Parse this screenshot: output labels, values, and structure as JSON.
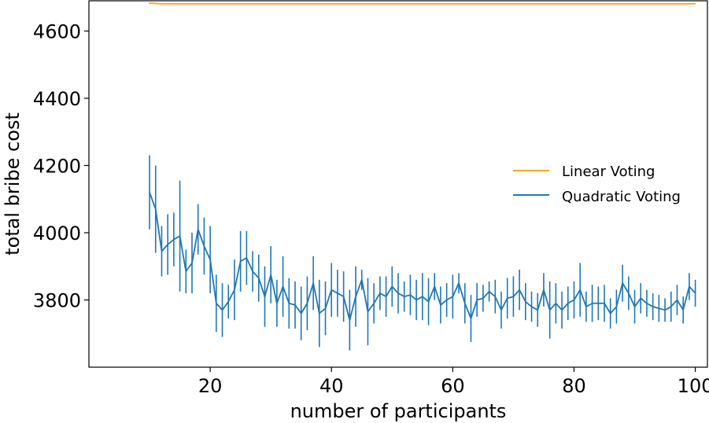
{
  "chart_data": {
    "type": "line",
    "xlabel": "number of participants",
    "ylabel": "total bribe cost",
    "xlim": [
      0,
      102
    ],
    "ylim": [
      3600,
      4690
    ],
    "xticks": [
      20,
      40,
      60,
      80,
      100
    ],
    "yticks": [
      3800,
      4000,
      4200,
      4400,
      4600
    ],
    "grid": false,
    "legend": "center-right",
    "colors": {
      "linear": "#f5a623",
      "quadratic": "#1f77b4"
    },
    "x": [
      10,
      11,
      12,
      13,
      14,
      15,
      16,
      17,
      18,
      19,
      20,
      21,
      22,
      23,
      24,
      25,
      26,
      27,
      28,
      29,
      30,
      31,
      32,
      33,
      34,
      35,
      36,
      37,
      38,
      39,
      40,
      41,
      42,
      43,
      44,
      45,
      46,
      47,
      48,
      49,
      50,
      51,
      52,
      53,
      54,
      55,
      56,
      57,
      58,
      59,
      60,
      61,
      62,
      63,
      64,
      65,
      66,
      67,
      68,
      69,
      70,
      71,
      72,
      73,
      74,
      75,
      76,
      77,
      78,
      79,
      80,
      81,
      82,
      83,
      84,
      85,
      86,
      87,
      88,
      89,
      90,
      91,
      92,
      93,
      94,
      95,
      96,
      97,
      98,
      99,
      100
    ],
    "series": [
      {
        "name": "Linear Voting",
        "values": [
          4683,
          4682,
          4681,
          4681,
          4681,
          4681,
          4681,
          4681,
          4681,
          4681,
          4681,
          4681,
          4681,
          4681,
          4681,
          4681,
          4681,
          4681,
          4681,
          4681,
          4681,
          4681,
          4681,
          4681,
          4681,
          4681,
          4681,
          4681,
          4681,
          4681,
          4681,
          4681,
          4681,
          4681,
          4681,
          4681,
          4681,
          4681,
          4681,
          4681,
          4681,
          4681,
          4681,
          4681,
          4681,
          4681,
          4681,
          4681,
          4681,
          4681,
          4681,
          4681,
          4681,
          4681,
          4681,
          4681,
          4681,
          4681,
          4681,
          4681,
          4681,
          4681,
          4681,
          4681,
          4681,
          4681,
          4681,
          4681,
          4681,
          4681,
          4681,
          4681,
          4681,
          4681,
          4681,
          4681,
          4681,
          4681,
          4681,
          4681,
          4681,
          4681,
          4681,
          4681,
          4681,
          4681,
          4681,
          4681,
          4681,
          4681,
          4681
        ],
        "errors": [
          2,
          2,
          1,
          1,
          1,
          1,
          1,
          1,
          1,
          1,
          1,
          1,
          1,
          1,
          1,
          1,
          1,
          1,
          1,
          1,
          1,
          1,
          1,
          1,
          1,
          1,
          1,
          1,
          1,
          1,
          1,
          1,
          1,
          1,
          1,
          1,
          1,
          1,
          1,
          1,
          1,
          1,
          1,
          1,
          1,
          1,
          1,
          1,
          1,
          1,
          1,
          1,
          1,
          1,
          1,
          1,
          1,
          1,
          1,
          1,
          1,
          1,
          1,
          1,
          1,
          1,
          1,
          1,
          1,
          1,
          1,
          1,
          1,
          1,
          1,
          1,
          1,
          1,
          1,
          1,
          1,
          1,
          1,
          1,
          1,
          1,
          1,
          1,
          1,
          1,
          1
        ]
      },
      {
        "name": "Quadratic Voting",
        "values": [
          4120,
          4070,
          3945,
          3965,
          3980,
          3990,
          3885,
          3910,
          4010,
          3960,
          3920,
          3790,
          3770,
          3795,
          3830,
          3915,
          3925,
          3885,
          3865,
          3810,
          3875,
          3790,
          3840,
          3790,
          3785,
          3760,
          3790,
          3850,
          3760,
          3775,
          3830,
          3820,
          3810,
          3740,
          3810,
          3860,
          3765,
          3790,
          3820,
          3810,
          3840,
          3820,
          3810,
          3815,
          3800,
          3810,
          3795,
          3840,
          3785,
          3800,
          3810,
          3850,
          3790,
          3745,
          3800,
          3805,
          3825,
          3810,
          3770,
          3805,
          3810,
          3830,
          3795,
          3780,
          3770,
          3830,
          3770,
          3790,
          3770,
          3790,
          3800,
          3830,
          3780,
          3790,
          3790,
          3790,
          3760,
          3780,
          3850,
          3820,
          3780,
          3805,
          3790,
          3780,
          3775,
          3770,
          3780,
          3800,
          3770,
          3840,
          3820
        ],
        "errors": [
          110,
          130,
          75,
          90,
          80,
          165,
          65,
          90,
          75,
          85,
          100,
          85,
          80,
          50,
          90,
          90,
          80,
          60,
          70,
          90,
          85,
          70,
          90,
          75,
          70,
          80,
          80,
          80,
          100,
          80,
          80,
          70,
          75,
          90,
          90,
          30,
          100,
          60,
          50,
          60,
          60,
          60,
          45,
          60,
          60,
          70,
          70,
          40,
          55,
          50,
          65,
          30,
          60,
          70,
          50,
          40,
          30,
          50,
          55,
          60,
          60,
          60,
          55,
          45,
          50,
          50,
          85,
          60,
          55,
          50,
          55,
          80,
          45,
          55,
          50,
          55,
          45,
          50,
          55,
          50,
          50,
          45,
          40,
          40,
          40,
          35,
          45,
          45,
          40,
          40,
          40
        ]
      }
    ]
  }
}
